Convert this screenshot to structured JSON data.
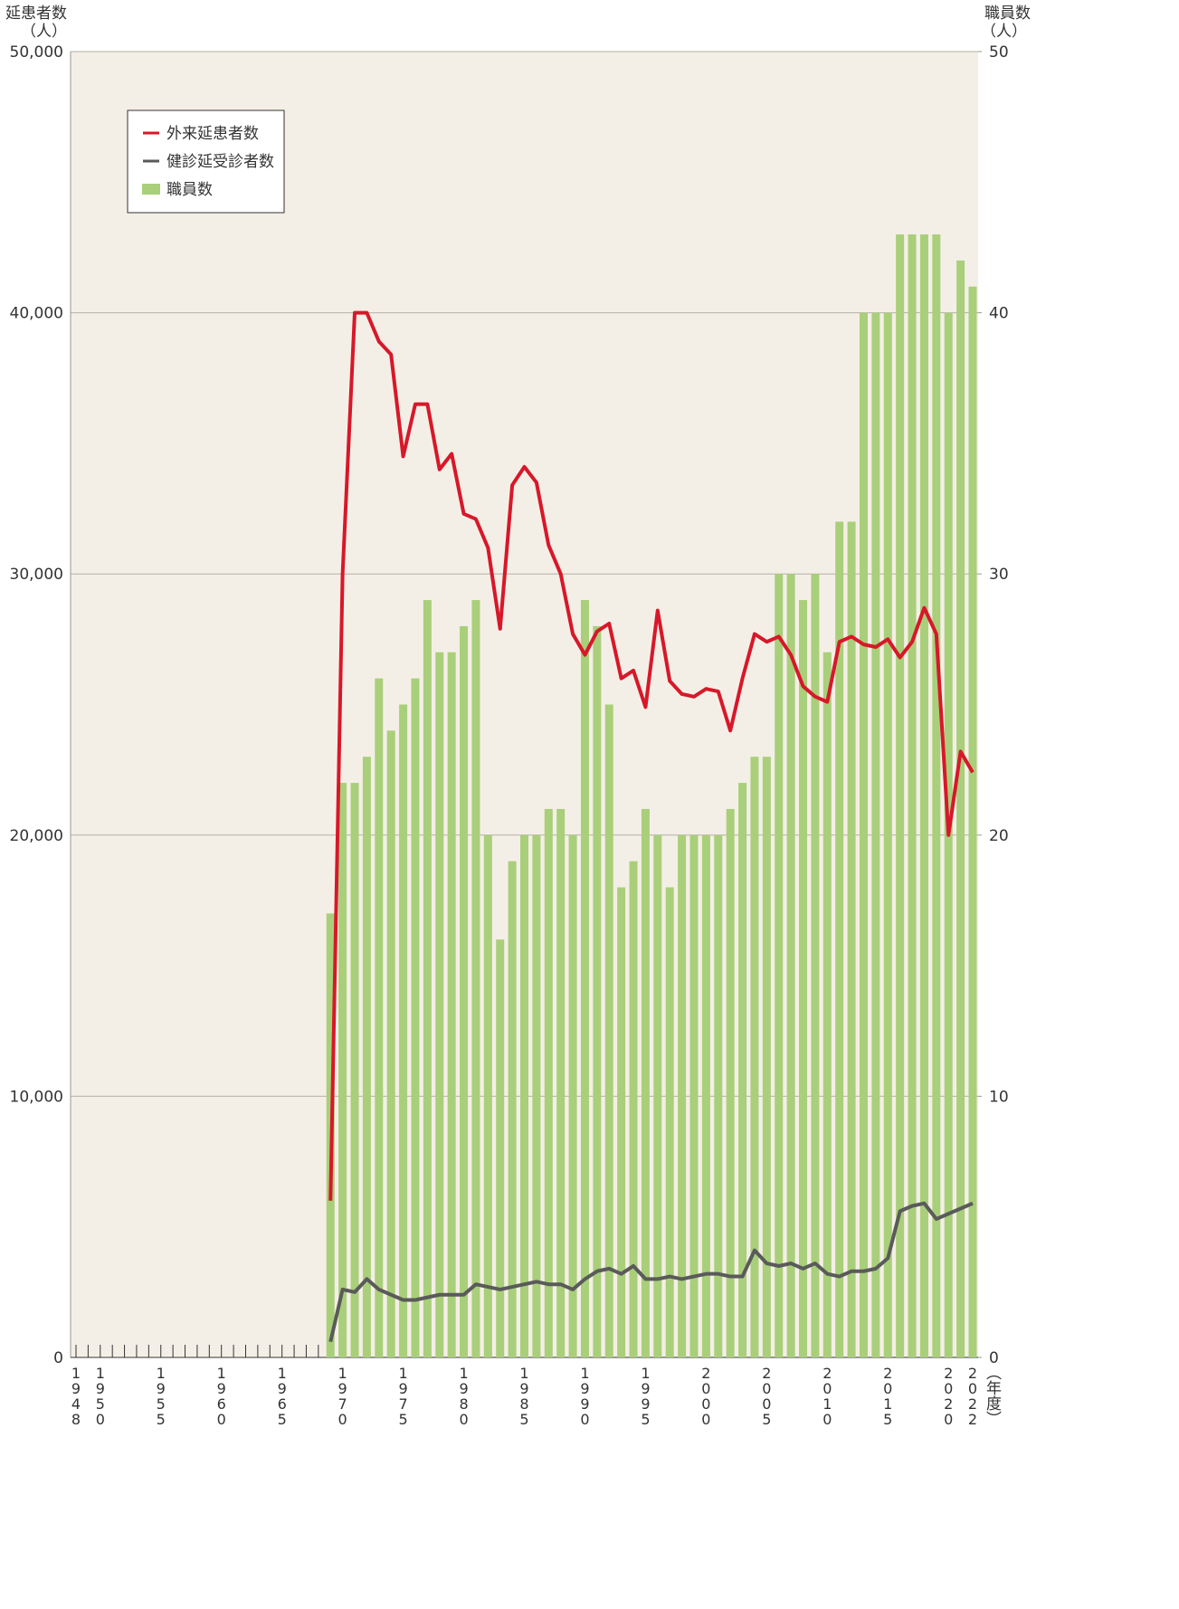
{
  "chart_data": {
    "type": "bar",
    "y_label": "延患者数",
    "y_unit": "（人）",
    "y2_label": "職員数",
    "y2_unit": "（人）",
    "x_unit": "（年度）",
    "categories": [
      "1948",
      null,
      "1950",
      null,
      null,
      null,
      null,
      "1955",
      null,
      null,
      null,
      null,
      "1960",
      null,
      null,
      null,
      null,
      "1965",
      null,
      null,
      null,
      null,
      "1970",
      null,
      null,
      null,
      null,
      "1975",
      null,
      null,
      null,
      null,
      "1980",
      null,
      null,
      null,
      null,
      "1985",
      null,
      null,
      null,
      null,
      "1990",
      null,
      null,
      null,
      null,
      "1995",
      null,
      null,
      null,
      null,
      "2000",
      null,
      null,
      null,
      null,
      "2005",
      null,
      null,
      null,
      null,
      "2010",
      null,
      null,
      null,
      null,
      "2015",
      null,
      null,
      null,
      null,
      "2020",
      null,
      "2022"
    ],
    "series": [
      {
        "name": "職員数",
        "type": "bar",
        "axis": "y2",
        "color": "#a9cf7a",
        "values": [
          null,
          null,
          null,
          null,
          null,
          null,
          null,
          null,
          null,
          null,
          null,
          null,
          null,
          null,
          null,
          null,
          null,
          null,
          null,
          null,
          null,
          17,
          22,
          22,
          23,
          26,
          24,
          25,
          26,
          29,
          27,
          27,
          28,
          29,
          20,
          16,
          19,
          20,
          20,
          21,
          21,
          20,
          29,
          28,
          25,
          18,
          19,
          21,
          20,
          18,
          20,
          20,
          20,
          20,
          21,
          22,
          23,
          23,
          30,
          30,
          29,
          30,
          27,
          32,
          32,
          40,
          40,
          40,
          43,
          43,
          43,
          43,
          40,
          42,
          41
        ]
      },
      {
        "name": "外来延患者数",
        "type": "line",
        "color": "#d7182a",
        "values": [
          null,
          null,
          null,
          null,
          null,
          null,
          null,
          null,
          null,
          null,
          null,
          null,
          null,
          null,
          null,
          null,
          null,
          null,
          null,
          null,
          null,
          6000,
          30000,
          40000,
          40000,
          38900,
          38400,
          34500,
          36500,
          36500,
          34000,
          34600,
          32300,
          32100,
          31000,
          27900,
          33400,
          34100,
          33500,
          31100,
          30000,
          27700,
          26900,
          27800,
          28100,
          26000,
          26300,
          24900,
          28600,
          25900,
          25400,
          25300,
          25600,
          25500,
          24000,
          26000,
          27700,
          27400,
          27600,
          26900,
          25700,
          25300,
          25100,
          27400,
          27600,
          27300,
          27200,
          27500,
          26800,
          27400,
          28700,
          27700,
          20000,
          23200,
          22400
        ]
      },
      {
        "name": "健診延受診者数",
        "type": "line",
        "color": "#5a5a5a",
        "values": [
          null,
          null,
          null,
          null,
          null,
          null,
          null,
          null,
          null,
          null,
          null,
          null,
          null,
          null,
          null,
          null,
          null,
          null,
          null,
          null,
          null,
          600,
          2600,
          2500,
          3000,
          2600,
          2400,
          2200,
          2200,
          2300,
          2400,
          2400,
          2400,
          2800,
          2700,
          2600,
          2700,
          2800,
          2900,
          2800,
          2800,
          2600,
          3000,
          3300,
          3400,
          3200,
          3500,
          3000,
          3000,
          3100,
          3000,
          3100,
          3200,
          3200,
          3100,
          3100,
          4100,
          3600,
          3500,
          3600,
          3400,
          3600,
          3200,
          3100,
          3300,
          3300,
          3400,
          3800,
          5600,
          5800,
          5900,
          5300,
          5500,
          5700,
          5900
        ]
      }
    ],
    "ylim": [
      0,
      50000
    ],
    "yticks": [
      0,
      {
        "value": 10000,
        "label": "10,000"
      },
      {
        "value": 20000,
        "label": "20,000"
      },
      {
        "value": 30000,
        "label": "30,000"
      },
      {
        "value": 40000,
        "label": "40,000"
      },
      {
        "value": 50000,
        "label": "50,000"
      }
    ],
    "y2lim": [
      0,
      50
    ],
    "y2ticks": [
      0,
      10,
      20,
      30,
      40,
      50
    ],
    "grid": true,
    "legend": "upper left"
  }
}
